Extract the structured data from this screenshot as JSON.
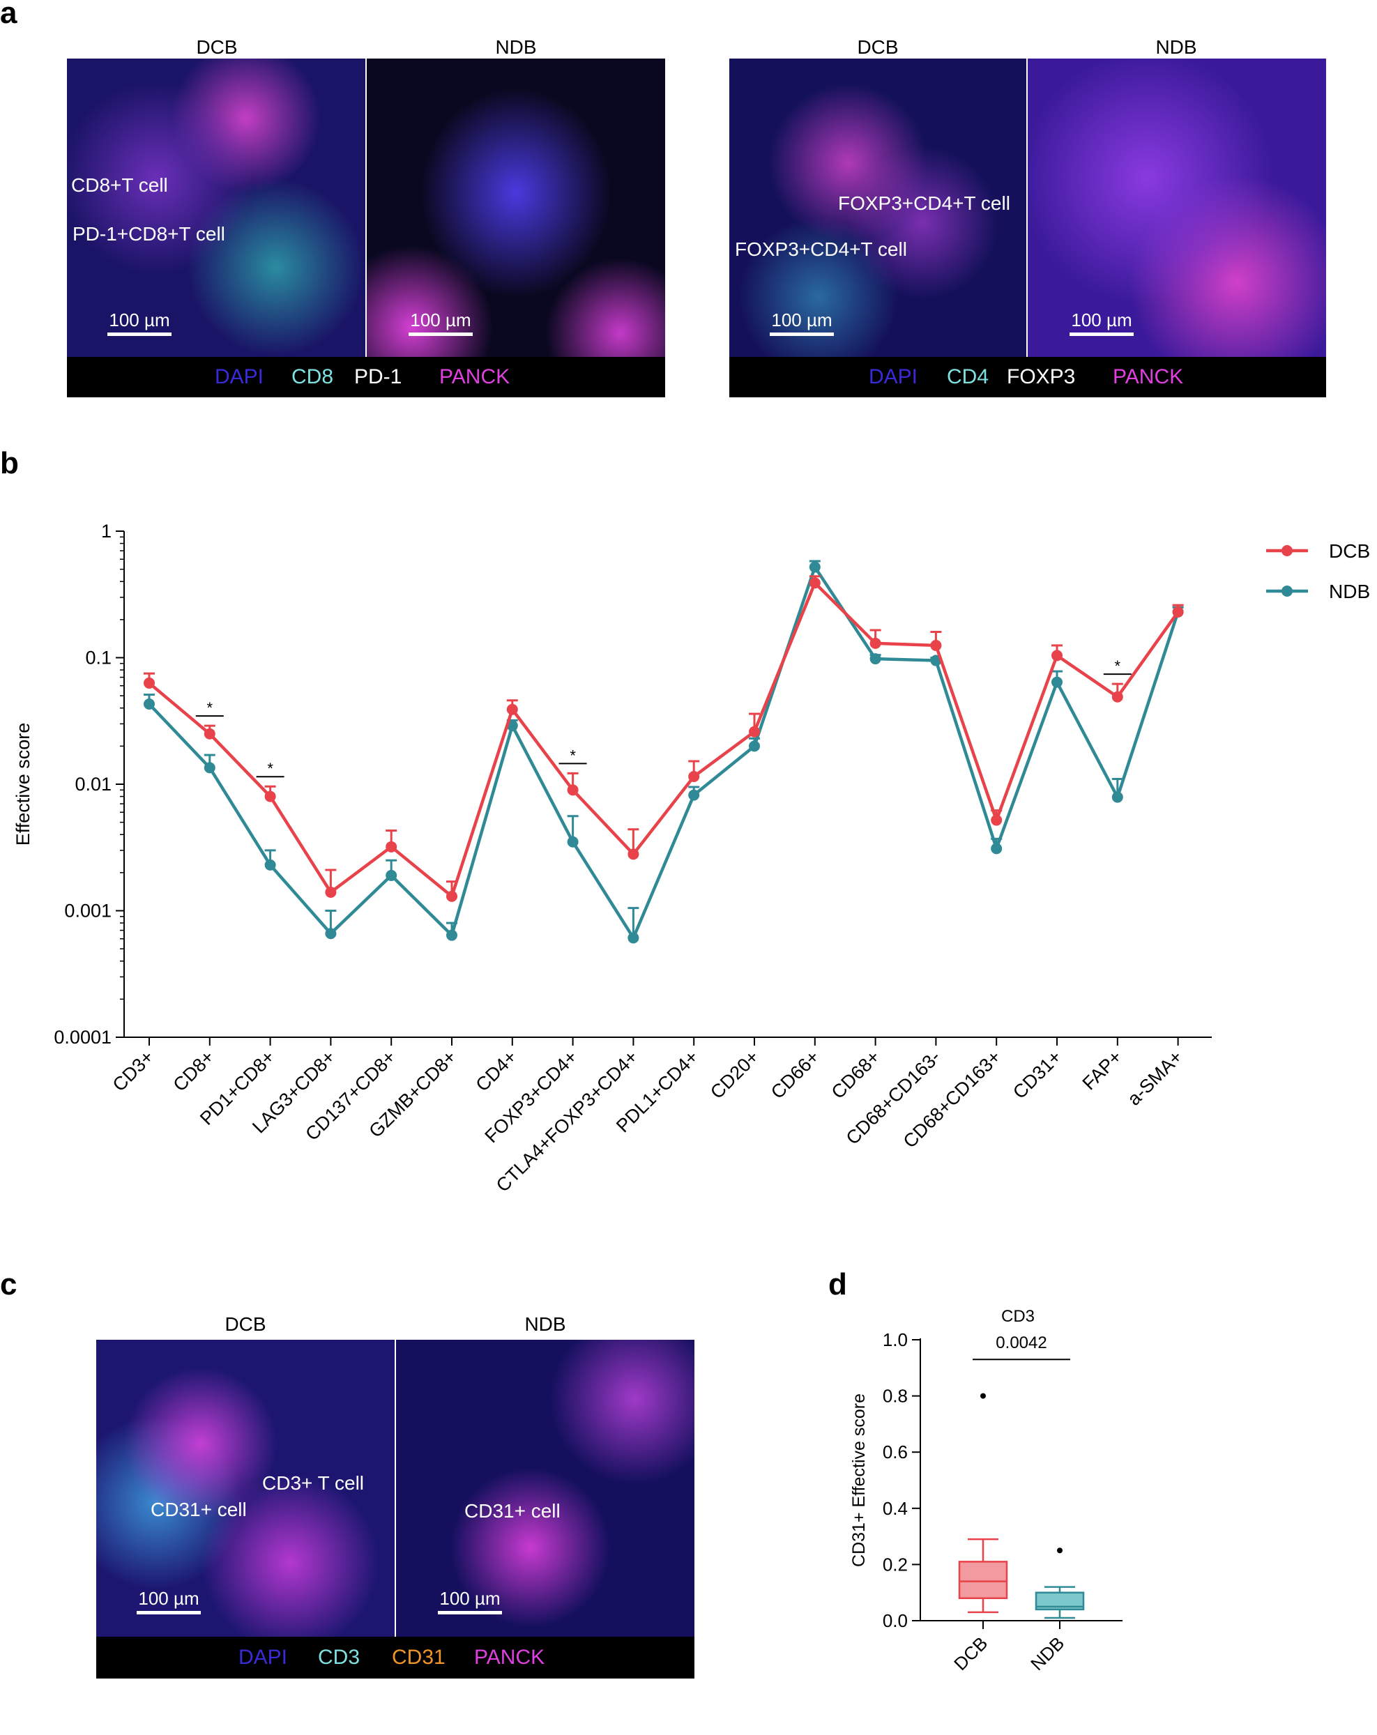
{
  "panel_labels": {
    "a": "a",
    "b": "b",
    "c": "c",
    "d": "d"
  },
  "panel_a": {
    "left": {
      "dcb_title": "DCB",
      "ndb_title": "NDB",
      "annotations": [
        "CD8+T cell",
        "PD-1+CD8+T cell"
      ],
      "scale_left": "100 µm",
      "scale_right": "100 µm",
      "legend": [
        {
          "label": "DAPI",
          "color": "#3a2bd9"
        },
        {
          "label": "CD8",
          "color": "#7fe0e0"
        },
        {
          "label": "PD-1",
          "color": "#ffffff"
        },
        {
          "label": "PANCK",
          "color": "#e040e0"
        }
      ]
    },
    "right": {
      "dcb_title": "DCB",
      "ndb_title": "NDB",
      "annotations": [
        "FOXP3+CD4+T cell",
        "FOXP3+CD4+T cell"
      ],
      "scale_left": "100 µm",
      "scale_right": "100 µm",
      "legend": [
        {
          "label": "DAPI",
          "color": "#3a2bd9"
        },
        {
          "label": "CD4",
          "color": "#7fe0e0"
        },
        {
          "label": "FOXP3",
          "color": "#ffffff"
        },
        {
          "label": "PANCK",
          "color": "#e040e0"
        }
      ]
    }
  },
  "panel_c": {
    "dcb_title": "DCB",
    "ndb_title": "NDB",
    "annotations": [
      "CD3+ T cell",
      "CD31+ cell",
      "CD31+ cell"
    ],
    "scale_left": "100 µm",
    "scale_right": "100 µm",
    "legend": [
      {
        "label": "DAPI",
        "color": "#3a2bd9"
      },
      {
        "label": "CD3",
        "color": "#7fe0e0"
      },
      {
        "label": "CD31",
        "color": "#f0952a"
      },
      {
        "label": "PANCK",
        "color": "#e040e0"
      }
    ]
  },
  "chart_data": [
    {
      "type": "line",
      "panel": "b",
      "title": "",
      "xlabel": "",
      "ylabel": "Effective score",
      "yscale": "log",
      "ylim": [
        0.0001,
        1
      ],
      "yticks": [
        "0.0001",
        "0.001",
        "0.01",
        "0.1",
        "1"
      ],
      "categories": [
        "CD3+",
        "CD8+",
        "PD1+CD8+",
        "LAG3+CD8+",
        "CD137+CD8+",
        "GZMB+CD8+",
        "CD4+",
        "FOXP3+CD4+",
        "CTLA4+FOXP3+CD4+",
        "PDL1+CD4+",
        "CD20+",
        "CD66+",
        "CD68+",
        "CD68+CD163-",
        "CD68+CD163+",
        "CD31+",
        "FAP+",
        "a-SMA+"
      ],
      "series": [
        {
          "name": "DCB",
          "color": "#e8434a",
          "values": [
            0.063,
            0.025,
            0.008,
            0.0014,
            0.0032,
            0.0013,
            0.039,
            0.009,
            0.0028,
            0.0115,
            0.026,
            0.39,
            0.13,
            0.125,
            0.0052,
            0.104,
            0.049,
            0.23
          ],
          "error_upper": [
            0.075,
            0.029,
            0.0096,
            0.0021,
            0.0043,
            0.0017,
            0.046,
            0.0122,
            0.0044,
            0.0152,
            0.036,
            0.44,
            0.165,
            0.16,
            0.0062,
            0.125,
            0.062,
            0.26
          ]
        },
        {
          "name": "NDB",
          "color": "#2f8a96",
          "values": [
            0.043,
            0.0135,
            0.0023,
            0.00066,
            0.0019,
            0.00064,
            0.029,
            0.0035,
            0.00061,
            0.0082,
            0.02,
            0.52,
            0.098,
            0.095,
            0.0031,
            0.064,
            0.0079,
            0.23
          ],
          "error_upper": [
            0.051,
            0.017,
            0.003,
            0.001,
            0.0025,
            0.0008,
            0.032,
            0.0056,
            0.00105,
            0.0095,
            0.023,
            0.58,
            0.105,
            0.1,
            0.0037,
            0.078,
            0.011,
            0.25
          ]
        }
      ],
      "significance": [
        {
          "category": "CD8+",
          "label": "*"
        },
        {
          "category": "PD1+CD8+",
          "label": "*"
        },
        {
          "category": "FOXP3+CD4+",
          "label": "*"
        },
        {
          "category": "FAP+",
          "label": "*"
        }
      ],
      "legend": [
        "DCB",
        "NDB"
      ],
      "legend_position": "top-right"
    },
    {
      "type": "box",
      "panel": "d",
      "title": "CD3",
      "ylabel": "CD31+  Effective score",
      "ylim": [
        0,
        1.0
      ],
      "yticks": [
        "0.0",
        "0.2",
        "0.4",
        "0.6",
        "0.8",
        "1.0"
      ],
      "categories": [
        "DCB",
        "NDB"
      ],
      "boxes": [
        {
          "name": "DCB",
          "min": 0.03,
          "q1": 0.08,
          "median": 0.14,
          "q3": 0.21,
          "max": 0.29,
          "outliers": [
            0.8
          ],
          "fill": "#f19aa0",
          "stroke": "#e8434a"
        },
        {
          "name": "NDB",
          "min": 0.01,
          "q1": 0.04,
          "median": 0.05,
          "q3": 0.1,
          "max": 0.12,
          "outliers": [
            0.25
          ],
          "fill": "#7cc8cc",
          "stroke": "#2f8a96"
        }
      ],
      "pvalue": "0.0042"
    }
  ]
}
